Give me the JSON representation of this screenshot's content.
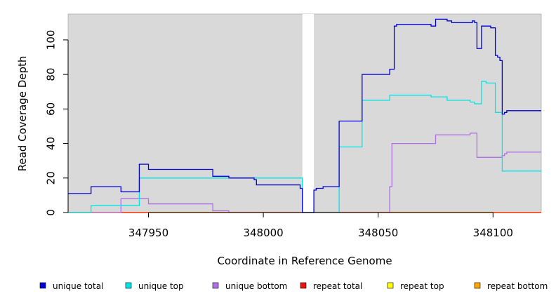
{
  "chart_data": {
    "type": "line",
    "xlabel": "Coordinate in Reference Genome",
    "ylabel": "Read Coverage Depth",
    "xlim": [
      347915,
      348121
    ],
    "ylim": [
      0,
      115
    ],
    "x_ticks": [
      347950,
      348000,
      348050,
      348100
    ],
    "y_ticks": [
      0,
      20,
      40,
      60,
      80,
      100
    ],
    "grid": false,
    "background": "#d9d9d9",
    "gap_region": [
      348017,
      348022
    ],
    "legend_position": "bottom",
    "series": [
      {
        "name": "unique total",
        "color": "#0000dd",
        "x": [
          347915,
          347925,
          347938,
          347946,
          347950,
          347978,
          347985,
          347996,
          347997,
          348016,
          348017,
          348022,
          348023,
          348026,
          348033,
          348043,
          348055,
          348057,
          348058,
          348073,
          348075,
          348080,
          348082,
          348091,
          348092,
          348093,
          348095,
          348099,
          348101,
          348102,
          348103,
          348104,
          348105,
          348106,
          348121
        ],
        "y": [
          11,
          15,
          12,
          28,
          25,
          21,
          20,
          19,
          16,
          14,
          0,
          13,
          14,
          15,
          53,
          80,
          83,
          108,
          109,
          108,
          112,
          111,
          110,
          111,
          110,
          95,
          108,
          107,
          91,
          90,
          88,
          57,
          58,
          59,
          59
        ]
      },
      {
        "name": "unique top",
        "color": "#00e5e5",
        "x": [
          347915,
          347925,
          347946,
          347985,
          348017,
          348022,
          348033,
          348043,
          348055,
          348073,
          348080,
          348090,
          348092,
          348095,
          348097,
          348101,
          348104,
          348121
        ],
        "y": [
          0,
          4,
          20,
          20,
          0,
          0,
          38,
          65,
          68,
          67,
          65,
          64,
          63,
          76,
          75,
          58,
          24,
          24
        ]
      },
      {
        "name": "unique bottom",
        "color": "#b070e8",
        "x": [
          347915,
          347938,
          347950,
          347978,
          347985,
          348055,
          348056,
          348075,
          348090,
          348093,
          348104,
          348105,
          348106,
          348121
        ],
        "y": [
          0,
          8,
          5,
          1,
          0,
          15,
          40,
          45,
          46,
          32,
          33,
          34,
          35,
          35
        ]
      },
      {
        "name": "repeat total",
        "color": "#ee1111",
        "x": [
          347915,
          348121
        ],
        "y": [
          0,
          0
        ]
      },
      {
        "name": "repeat top",
        "color": "#ffff00",
        "x": [
          347915,
          348121
        ],
        "y": [
          0,
          0
        ]
      },
      {
        "name": "repeat bottom",
        "color": "#ffa500",
        "x": [
          347915,
          348121
        ],
        "y": [
          0,
          0
        ]
      }
    ]
  }
}
